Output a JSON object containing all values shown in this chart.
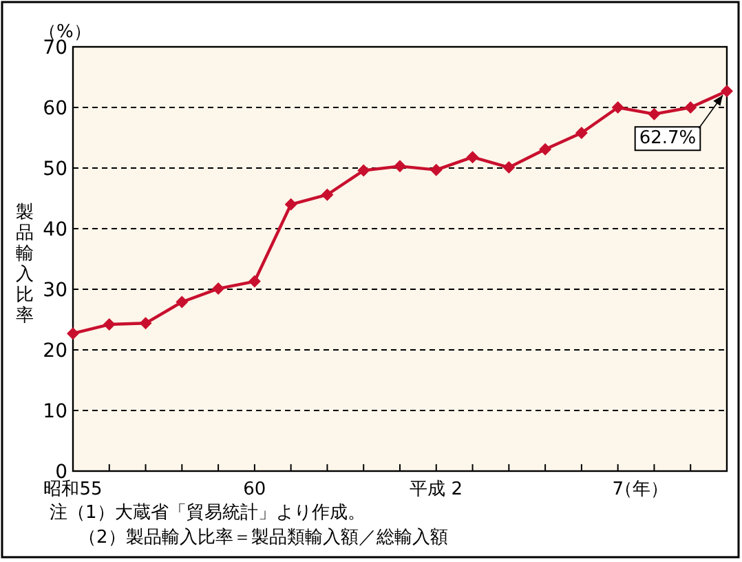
{
  "chart_data": {
    "type": "line",
    "ylabel": "製品輸入比率",
    "xlabel": "（年）",
    "categories": [
      "昭和55",
      null,
      null,
      null,
      null,
      "60",
      null,
      null,
      null,
      null,
      "平成 2",
      null,
      null,
      null,
      null,
      "7",
      null,
      null,
      null
    ],
    "series": [
      {
        "color": "#c8102e",
        "values": [
          22.7,
          24.2,
          24.4,
          27.9,
          30.1,
          31.3,
          44.0,
          45.6,
          49.6,
          50.3,
          49.7,
          51.8,
          50.1,
          53.1,
          55.8,
          60.0,
          58.9,
          60.0,
          62.7
        ]
      }
    ],
    "ylim": [
      0,
      70
    ],
    "yticks": [
      0,
      10,
      20,
      30,
      40,
      50,
      60,
      70
    ],
    "grid": "y",
    "marker": "diamond",
    "line_style": "solid",
    "annotations": [
      "（%）",
      "62.7%",
      "注（1）大蔵省「貿易統計」より作成。",
      "（2）製品輸入比率＝製品類輸入額／総輸入額"
    ]
  }
}
